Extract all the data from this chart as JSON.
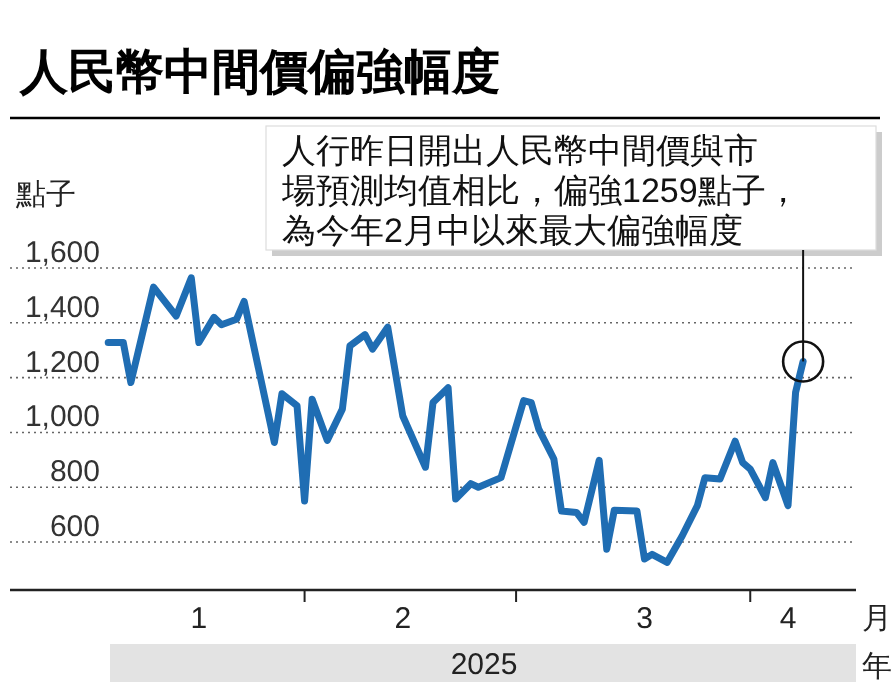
{
  "chart_data": {
    "type": "line",
    "title": "人民幣中間價偏強幅度",
    "ylabel": "點子",
    "xlabel": "月",
    "x": [
      "2025-01-06",
      "2025-01-08",
      "2025-01-09",
      "2025-01-12",
      "2025-01-15",
      "2025-01-17",
      "2025-01-18",
      "2025-01-20",
      "2025-01-21",
      "2025-01-23",
      "2025-01-24",
      "2025-01-28",
      "2025-01-29",
      "2025-01-31",
      "2025-02-01",
      "2025-02-02",
      "2025-02-04",
      "2025-02-06",
      "2025-02-07",
      "2025-02-09",
      "2025-02-10",
      "2025-02-12",
      "2025-02-14",
      "2025-02-17",
      "2025-02-18",
      "2025-02-20",
      "2025-02-21",
      "2025-02-23",
      "2025-02-24",
      "2025-02-27",
      "2025-03-02",
      "2025-03-03",
      "2025-03-04",
      "2025-03-06",
      "2025-03-07",
      "2025-03-09",
      "2025-03-10",
      "2025-03-12",
      "2025-03-13",
      "2025-03-14",
      "2025-03-17",
      "2025-03-18",
      "2025-03-19",
      "2025-03-21",
      "2025-03-23",
      "2025-03-25",
      "2025-03-26",
      "2025-03-28",
      "2025-03-30",
      "2025-03-31",
      "2025-04-01",
      "2025-04-03",
      "2025-04-04",
      "2025-04-06",
      "2025-04-07",
      "2025-04-08"
    ],
    "series": [
      {
        "color": "#1f6db3",
        "values": [
          1328,
          1328,
          1182,
          1530,
          1425,
          1564,
          1328,
          1420,
          1393,
          1413,
          1478,
          963,
          1141,
          1097,
          750,
          1121,
          971,
          1085,
          1316,
          1357,
          1304,
          1384,
          1060,
          873,
          1109,
          1163,
          757,
          813,
          800,
          835,
          1116,
          1109,
          1012,
          903,
          713,
          708,
          672,
          898,
          574,
          716,
          713,
          538,
          555,
          526,
          623,
          733,
          835,
          830,
          968,
          890,
          866,
          762,
          890,
          733,
          1146,
          1259
        ]
      }
    ],
    "xlim": [
      "2024-12-24",
      "2025-04-15"
    ],
    "xticks": [
      {
        "value": "2025-01-18",
        "label": "1"
      },
      {
        "value": "2025-02-01",
        "label": null
      },
      {
        "value": "2025-02-14",
        "label": "2"
      },
      {
        "value": "2025-03-01",
        "label": null
      },
      {
        "value": "2025-03-18",
        "label": "3"
      },
      {
        "value": "2025-04-01",
        "label": null
      },
      {
        "value": "2025-04-06",
        "label": "4"
      }
    ],
    "ylim": [
      425,
      1600
    ],
    "yticks": [
      {
        "value": 600,
        "label": "600"
      },
      {
        "value": 800,
        "label": "800"
      },
      {
        "value": 1000,
        "label": "1,000"
      },
      {
        "value": 1200,
        "label": "1,200"
      },
      {
        "value": 1400,
        "label": "1,400"
      },
      {
        "value": 1600,
        "label": "1,600"
      }
    ],
    "grid": "y",
    "marker": "none",
    "line_style": "solid",
    "annotations": [
      {
        "text": "人行昨日開出人民幣中間價與市場預測均值相比，偏強1259點子，為今年2月中以來最大偏強幅度",
        "x": "2025-04-08",
        "y": 1259
      },
      "2025",
      "年"
    ]
  }
}
